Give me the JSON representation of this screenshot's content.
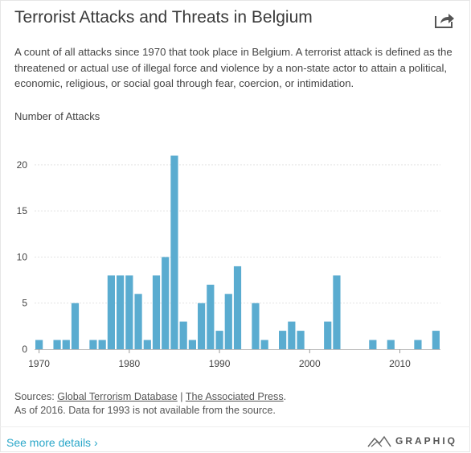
{
  "header": {
    "title": "Terrorist Attacks and Threats in Belgium",
    "description": "A count of all attacks since 1970 that took place in Belgium. A terrorist attack is defined as the threatened or actual use of illegal force and violence by a non-state actor to attain a political, economic, religious, or social goal through fear, coercion, or intimidation."
  },
  "icons": {
    "share": "share-icon",
    "brand": "graphiq-logo-icon"
  },
  "colors": {
    "bar": "#5aacd0",
    "grid": "#e3e3e3",
    "link": "#2aa7c9"
  },
  "chart_data": {
    "type": "bar",
    "ylabel": "Number of Attacks",
    "xlabel": "",
    "ylim": [
      0,
      22
    ],
    "xlim": [
      1969.5,
      2014.5
    ],
    "yticks": [
      0,
      5,
      10,
      15,
      20
    ],
    "xticks": [
      1970,
      1980,
      1990,
      2000,
      2010
    ],
    "grid": true,
    "x": [
      1970,
      1971,
      1972,
      1973,
      1974,
      1975,
      1976,
      1977,
      1978,
      1979,
      1980,
      1981,
      1982,
      1983,
      1984,
      1985,
      1986,
      1987,
      1988,
      1989,
      1990,
      1991,
      1992,
      1993,
      1994,
      1995,
      1996,
      1997,
      1998,
      1999,
      2000,
      2001,
      2002,
      2003,
      2004,
      2005,
      2006,
      2007,
      2008,
      2009,
      2010,
      2011,
      2012,
      2013,
      2014
    ],
    "values": [
      1,
      0,
      1,
      1,
      5,
      0,
      1,
      1,
      8,
      8,
      8,
      6,
      1,
      8,
      10,
      21,
      3,
      1,
      5,
      7,
      2,
      6,
      9,
      null,
      5,
      1,
      0,
      2,
      3,
      2,
      0,
      0,
      3,
      8,
      0,
      0,
      0,
      1,
      0,
      1,
      0,
      0,
      1,
      0,
      2
    ]
  },
  "sources": {
    "prefix": "Sources: ",
    "link1": "Global Terrorism Database",
    "separator": " | ",
    "link2": "The Associated Press",
    "suffix": ".",
    "note": "As of 2016. Data for 1993 is not available from the source."
  },
  "footer": {
    "more": "See more details ›",
    "brand": "GRAPHIQ"
  }
}
